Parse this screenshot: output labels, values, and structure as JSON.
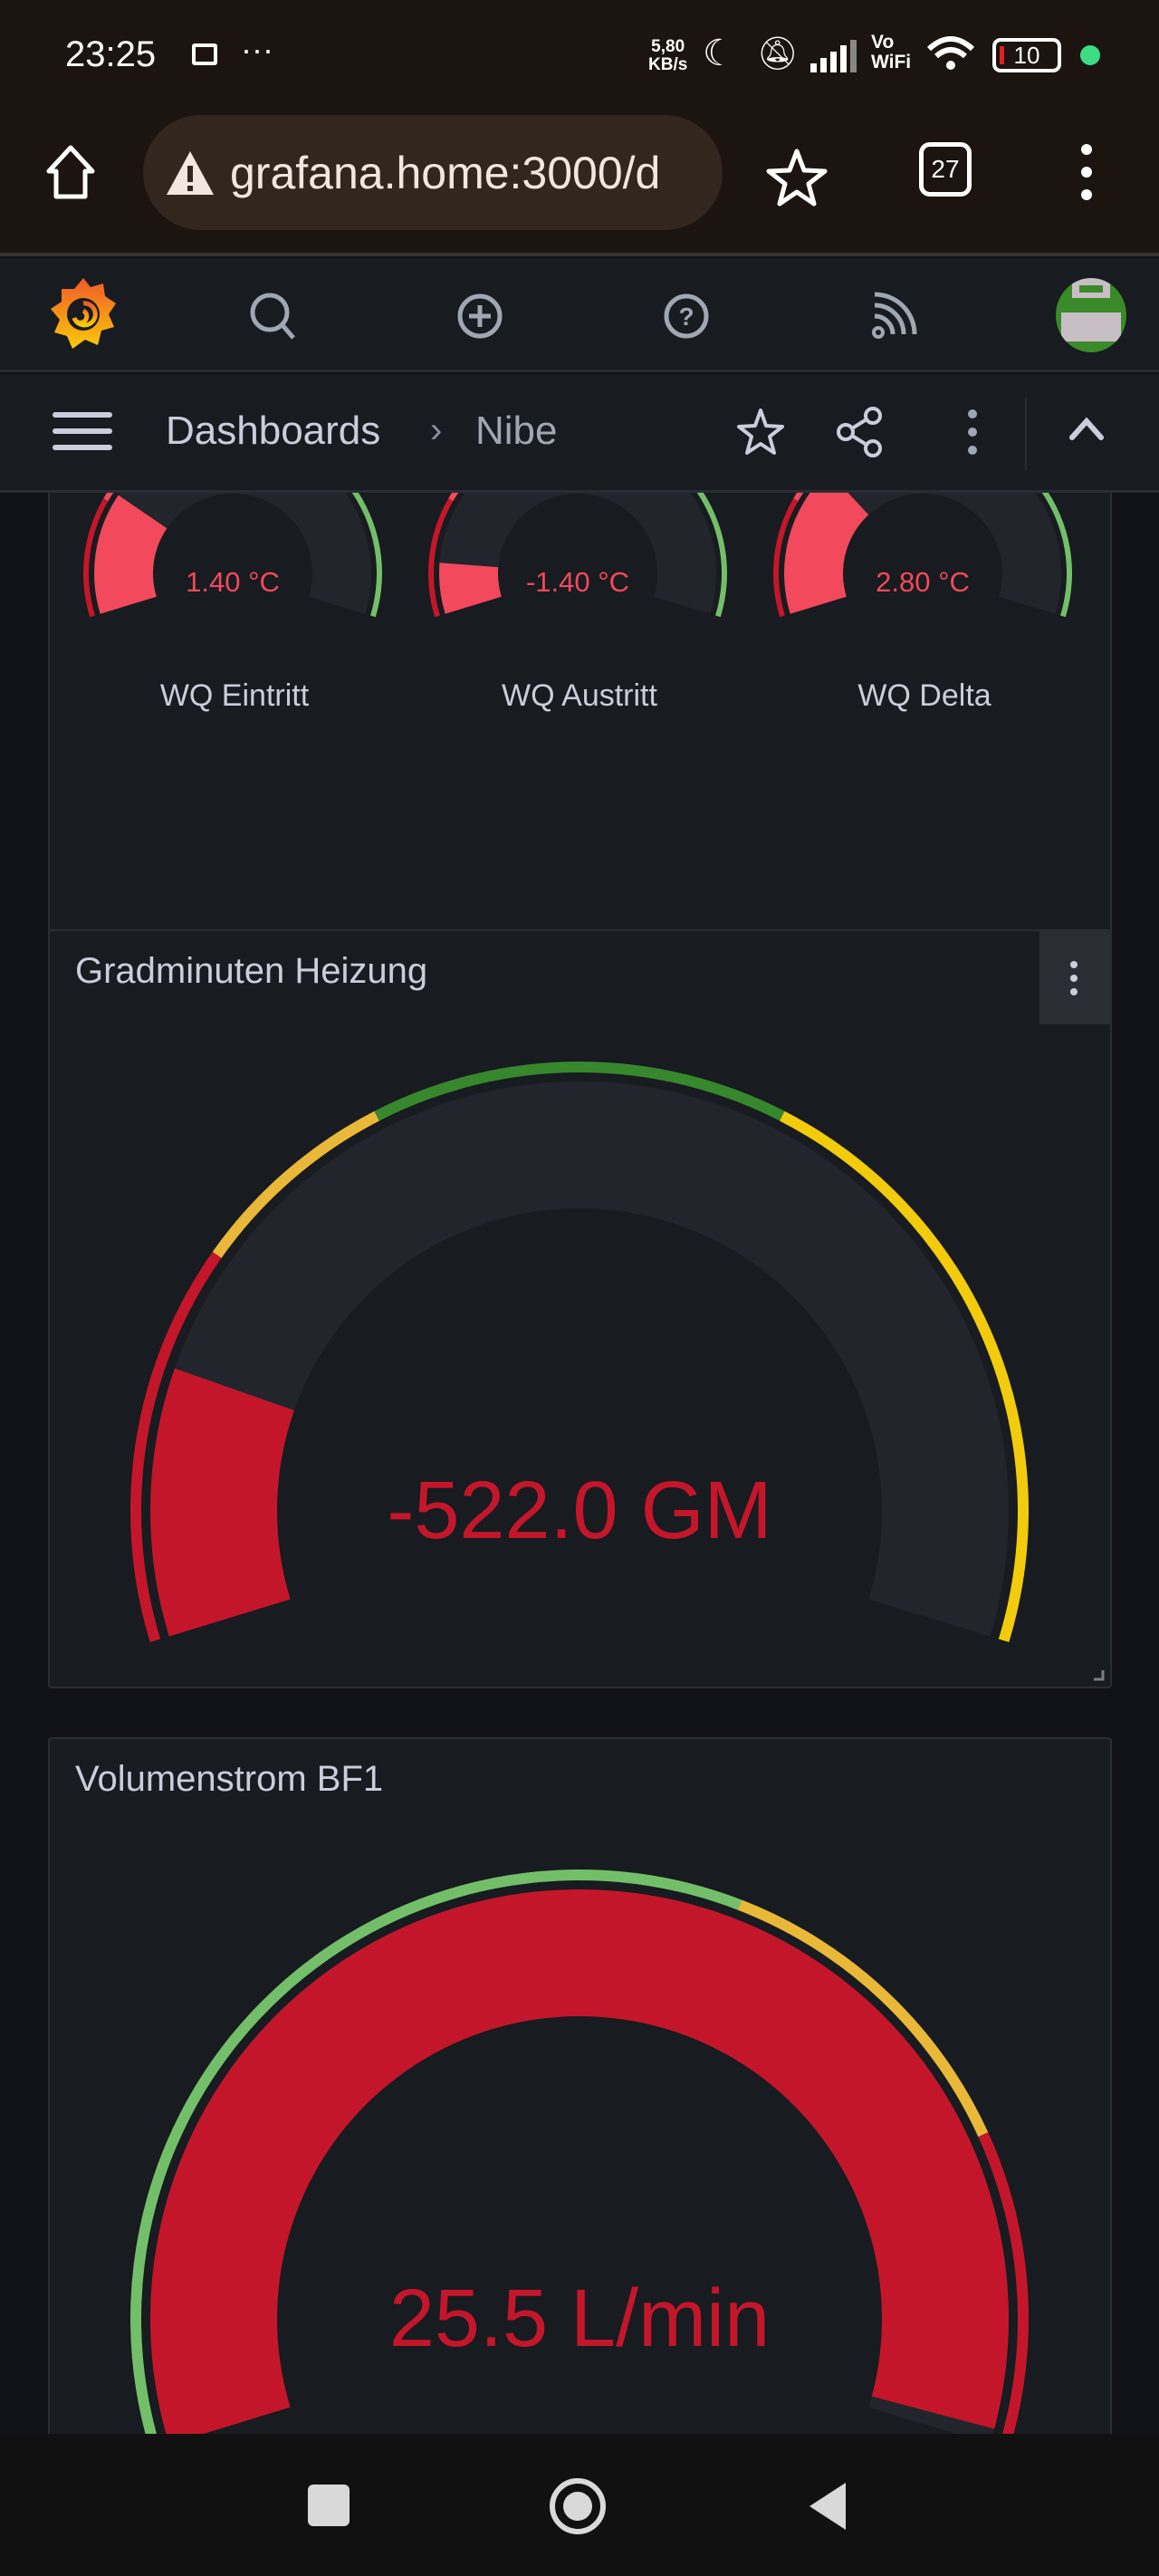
{
  "status_bar": {
    "time": "23:25",
    "net_speed_value": "5,80",
    "net_speed_unit": "KB/s",
    "wifi_label_1": "Vo",
    "wifi_label_2": "WiFi",
    "battery": "10"
  },
  "browser": {
    "url": "grafana.home:3000/d",
    "tab_count": "27"
  },
  "breadcrumb": {
    "root": "Dashboards",
    "separator": "›",
    "current": "Nibe"
  },
  "colors": {
    "red": "#c4162a",
    "light_red": "#f2495c",
    "green": "#37872d",
    "light_green": "#73bf69",
    "yellow": "#f2cc0c",
    "orange_yellow": "#eab839",
    "track": "#22252b"
  },
  "panel_top": {
    "gauges": [
      {
        "label": "WQ Eintritt",
        "value": "1.40 °C",
        "fill": 0.24
      },
      {
        "label": "WQ Austritt",
        "value": "-1.40 °C",
        "fill": 0.1
      },
      {
        "label": "WQ Delta",
        "value": "2.80 °C",
        "fill": 0.3
      }
    ]
  },
  "panel_gradminuten": {
    "title": "Gradminuten Heizung",
    "value": "-522.0 GM",
    "fill": 0.17,
    "thresholds": [
      {
        "from": 0,
        "to": 0.244,
        "color": "#c4162a"
      },
      {
        "from": 0.244,
        "to": 0.373,
        "color": "#eab839"
      },
      {
        "from": 0.373,
        "to": 0.627,
        "color": "#37872d"
      },
      {
        "from": 0.627,
        "to": 1,
        "color": "#f2cc0c"
      }
    ]
  },
  "panel_volumenstrom": {
    "title": "Volumenstrom BF1",
    "value": "25.5 L/min",
    "fill": 0.99,
    "thresholds": [
      {
        "from": 0,
        "to": 0.599,
        "color": "#73bf69"
      },
      {
        "from": 0.599,
        "to": 0.806,
        "color": "#eab839"
      },
      {
        "from": 0.806,
        "to": 1,
        "color": "#c4162a"
      }
    ]
  }
}
